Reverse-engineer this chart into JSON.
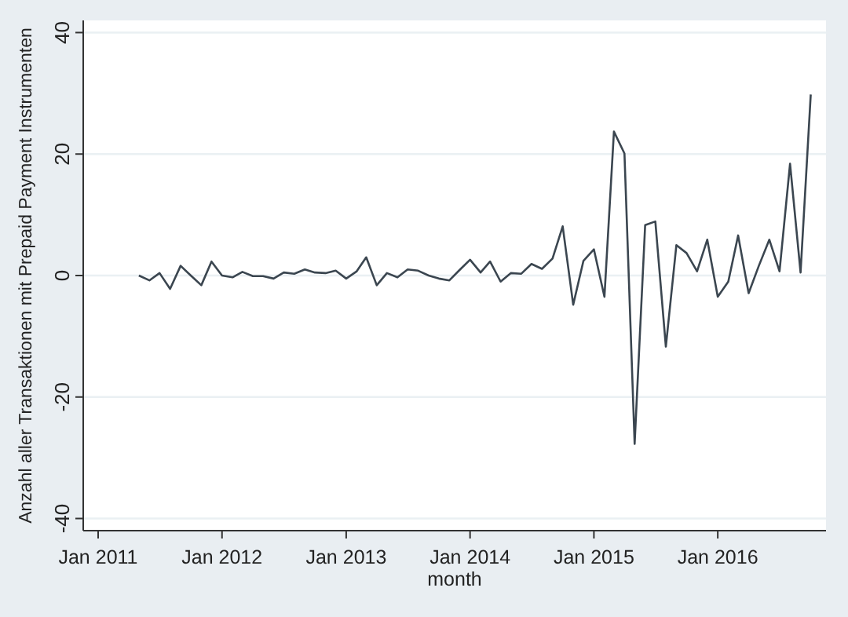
{
  "chart_data": {
    "type": "line",
    "xlabel": "month",
    "ylabel": "Anzahl aller Transaktionen mit Prepaid Payment Instrumenten",
    "x": [
      "2011-05",
      "2011-06",
      "2011-07",
      "2011-08",
      "2011-09",
      "2011-10",
      "2011-11",
      "2011-12",
      "2012-01",
      "2012-02",
      "2012-03",
      "2012-04",
      "2012-05",
      "2012-06",
      "2012-07",
      "2012-08",
      "2012-09",
      "2012-10",
      "2012-11",
      "2012-12",
      "2013-01",
      "2013-02",
      "2013-03",
      "2013-04",
      "2013-05",
      "2013-06",
      "2013-07",
      "2013-08",
      "2013-09",
      "2013-10",
      "2013-11",
      "2013-12",
      "2014-01",
      "2014-02",
      "2014-03",
      "2014-04",
      "2014-05",
      "2014-06",
      "2014-07",
      "2014-08",
      "2014-09",
      "2014-10",
      "2014-11",
      "2014-12",
      "2015-01",
      "2015-02",
      "2015-03",
      "2015-04",
      "2015-05",
      "2015-06",
      "2015-07",
      "2015-08",
      "2015-09",
      "2015-10",
      "2015-11",
      "2015-12",
      "2016-01",
      "2016-02",
      "2016-03",
      "2016-04",
      "2016-05",
      "2016-06",
      "2016-07",
      "2016-08",
      "2016-09",
      "2016-10"
    ],
    "series": [
      {
        "color": "#3b4650",
        "values": [
          0,
          -0.8,
          0.4,
          -2.2,
          1.6,
          0,
          -1.6,
          2.3,
          0,
          -0.3,
          0.6,
          -0.1,
          -0.1,
          -0.5,
          0.5,
          0.3,
          1,
          0.5,
          0.4,
          0.8,
          -0.5,
          0.7,
          3,
          -1.6,
          0.4,
          -0.3,
          1,
          0.8,
          0,
          -0.5,
          -0.8,
          0.9,
          2.6,
          0.5,
          2.3,
          -1,
          0.4,
          0.3,
          1.9,
          1.1,
          2.8,
          8.1,
          -4.8,
          2.4,
          4.3,
          -3.5,
          23.7,
          20.1,
          -27.7,
          8.3,
          8.9,
          -11.7,
          5,
          3.7,
          0.7,
          5.9,
          -3.5,
          -1,
          6.6,
          -2.9,
          1.6,
          5.9,
          0.7,
          18.4,
          0.5,
          29.8
        ]
      }
    ],
    "xlim": [
      "2010-11-18",
      "2016-11-15"
    ],
    "xticks": [
      {
        "value": "2011-01",
        "label": "Jan 2011"
      },
      {
        "value": "2012-01",
        "label": "Jan 2012"
      },
      {
        "value": "2013-01",
        "label": "Jan 2013"
      },
      {
        "value": "2014-01",
        "label": "Jan 2014"
      },
      {
        "value": "2015-01",
        "label": "Jan 2015"
      },
      {
        "value": "2016-01",
        "label": "Jan 2016"
      }
    ],
    "ylim": [
      -42,
      42
    ],
    "yticks": [
      -40,
      -20,
      0,
      20,
      40
    ],
    "grid": "y",
    "marker": "none",
    "line_style": "solid"
  }
}
